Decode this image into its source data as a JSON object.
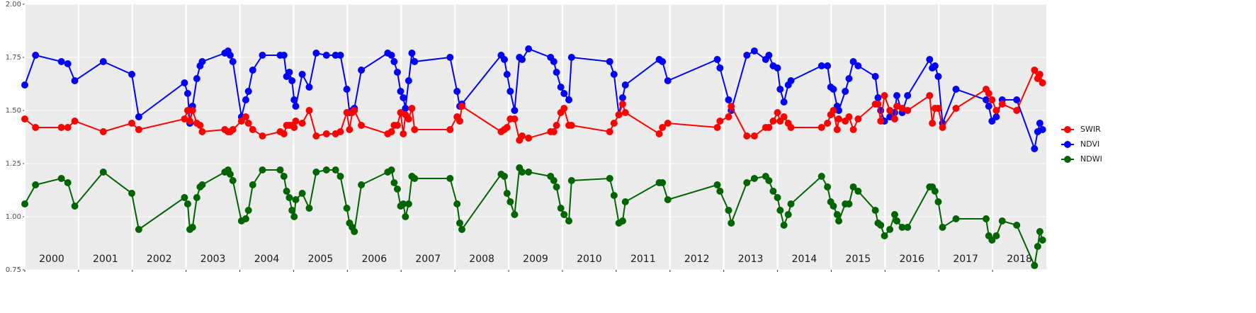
{
  "chart_data": {
    "type": "line",
    "x": [
      2000.0,
      2000.2,
      2000.68,
      2000.8,
      2000.93,
      2001.46,
      2001.99,
      2002.12,
      2002.97,
      2003.03,
      2003.07,
      2003.12,
      2003.2,
      2003.26,
      2003.3,
      2003.72,
      2003.78,
      2003.82,
      2003.87,
      2004.03,
      2004.11,
      2004.16,
      2004.24,
      2004.42,
      2004.75,
      2004.82,
      2004.87,
      2004.92,
      2004.97,
      2005.01,
      2005.04,
      2005.16,
      2005.29,
      2005.42,
      2005.61,
      2005.78,
      2005.87,
      2005.99,
      2006.04,
      2006.09,
      2006.13,
      2006.26,
      2006.75,
      2006.82,
      2006.87,
      2006.93,
      2006.99,
      2007.04,
      2007.08,
      2007.14,
      2007.2,
      2007.25,
      2007.91,
      2008.04,
      2008.09,
      2008.13,
      2008.86,
      2008.92,
      2008.97,
      2009.03,
      2009.11,
      2009.2,
      2009.25,
      2009.37,
      2009.78,
      2009.84,
      2009.89,
      2009.97,
      2010.03,
      2010.12,
      2010.17,
      2010.88,
      2010.96,
      2011.05,
      2011.12,
      2011.17,
      2011.8,
      2011.86,
      2011.96,
      2012.88,
      2012.93,
      2013.09,
      2013.14,
      2013.43,
      2013.57,
      2013.78,
      2013.84,
      2013.92,
      2014.0,
      2014.05,
      2014.12,
      2014.2,
      2014.25,
      2014.82,
      2014.93,
      2014.99,
      2015.04,
      2015.11,
      2015.14,
      2015.26,
      2015.33,
      2015.41,
      2015.5,
      2015.82,
      2015.87,
      2015.92,
      2015.99,
      2016.09,
      2016.18,
      2016.22,
      2016.32,
      2016.42,
      2016.83,
      2016.88,
      2016.93,
      2016.99,
      2017.07,
      2017.32,
      2017.88,
      2017.93,
      2017.99,
      2018.07,
      2018.18,
      2018.45,
      2018.78,
      2018.84,
      2018.88,
      2018.93
    ],
    "series": [
      {
        "name": "SWIR",
        "color": "#ff0000",
        "values": [
          1.46,
          1.42,
          1.42,
          1.42,
          1.45,
          1.4,
          1.44,
          1.41,
          1.46,
          1.5,
          1.45,
          1.5,
          1.44,
          1.43,
          1.4,
          1.41,
          1.4,
          1.4,
          1.41,
          1.45,
          1.47,
          1.44,
          1.41,
          1.38,
          1.4,
          1.39,
          1.43,
          1.43,
          1.43,
          1.42,
          1.45,
          1.44,
          1.5,
          1.38,
          1.39,
          1.39,
          1.4,
          1.49,
          1.41,
          1.49,
          1.5,
          1.43,
          1.39,
          1.4,
          1.43,
          1.43,
          1.49,
          1.39,
          1.48,
          1.46,
          1.51,
          1.41,
          1.41,
          1.47,
          1.45,
          1.52,
          1.4,
          1.41,
          1.42,
          1.46,
          1.46,
          1.36,
          1.38,
          1.37,
          1.4,
          1.4,
          1.43,
          1.49,
          1.51,
          1.43,
          1.43,
          1.4,
          1.44,
          1.48,
          1.53,
          1.49,
          1.39,
          1.42,
          1.44,
          1.42,
          1.45,
          1.47,
          1.52,
          1.38,
          1.38,
          1.42,
          1.42,
          1.45,
          1.49,
          1.45,
          1.47,
          1.44,
          1.42,
          1.42,
          1.44,
          1.48,
          1.5,
          1.41,
          1.46,
          1.45,
          1.47,
          1.41,
          1.46,
          1.53,
          1.53,
          1.45,
          1.57,
          1.5,
          1.46,
          1.52,
          1.51,
          1.5,
          1.57,
          1.44,
          1.51,
          1.51,
          1.42,
          1.51,
          1.6,
          1.58,
          1.55,
          1.5,
          1.53,
          1.5,
          1.69,
          1.65,
          1.67,
          1.63
        ]
      },
      {
        "name": "NDVI",
        "color": "#0000ff",
        "values": [
          1.62,
          1.76,
          1.73,
          1.72,
          1.64,
          1.73,
          1.67,
          1.47,
          1.63,
          1.58,
          1.44,
          1.52,
          1.65,
          1.71,
          1.73,
          1.77,
          1.78,
          1.76,
          1.73,
          1.47,
          1.55,
          1.59,
          1.69,
          1.76,
          1.76,
          1.76,
          1.66,
          1.68,
          1.64,
          1.55,
          1.52,
          1.67,
          1.61,
          1.77,
          1.76,
          1.76,
          1.76,
          1.6,
          1.49,
          1.5,
          1.51,
          1.69,
          1.77,
          1.76,
          1.73,
          1.68,
          1.59,
          1.56,
          1.51,
          1.64,
          1.77,
          1.73,
          1.75,
          1.59,
          1.52,
          1.53,
          1.76,
          1.74,
          1.67,
          1.59,
          1.5,
          1.75,
          1.74,
          1.79,
          1.75,
          1.73,
          1.68,
          1.61,
          1.58,
          1.55,
          1.75,
          1.73,
          1.67,
          1.48,
          1.56,
          1.62,
          1.74,
          1.73,
          1.64,
          1.74,
          1.7,
          1.55,
          1.5,
          1.76,
          1.78,
          1.74,
          1.76,
          1.71,
          1.7,
          1.6,
          1.54,
          1.62,
          1.64,
          1.71,
          1.71,
          1.61,
          1.6,
          1.52,
          1.5,
          1.59,
          1.65,
          1.73,
          1.71,
          1.66,
          1.56,
          1.5,
          1.45,
          1.47,
          1.49,
          1.57,
          1.49,
          1.57,
          1.74,
          1.7,
          1.71,
          1.66,
          1.44,
          1.6,
          1.55,
          1.52,
          1.45,
          1.47,
          1.55,
          1.55,
          1.32,
          1.4,
          1.44,
          1.41
        ]
      },
      {
        "name": "NDWI",
        "color": "#006400",
        "values": [
          1.06,
          1.15,
          1.18,
          1.16,
          1.05,
          1.21,
          1.11,
          0.94,
          1.09,
          1.06,
          0.94,
          0.95,
          1.09,
          1.14,
          1.15,
          1.21,
          1.22,
          1.2,
          1.17,
          0.98,
          0.99,
          1.03,
          1.15,
          1.22,
          1.22,
          1.19,
          1.12,
          1.09,
          1.03,
          1.0,
          1.08,
          1.11,
          1.04,
          1.21,
          1.22,
          1.22,
          1.19,
          1.04,
          0.97,
          0.95,
          0.93,
          1.15,
          1.21,
          1.22,
          1.16,
          1.13,
          1.05,
          1.06,
          1.0,
          1.06,
          1.19,
          1.18,
          1.18,
          1.06,
          0.97,
          0.94,
          1.2,
          1.19,
          1.11,
          1.07,
          1.01,
          1.23,
          1.21,
          1.21,
          1.19,
          1.17,
          1.14,
          1.04,
          1.01,
          0.98,
          1.17,
          1.18,
          1.1,
          0.97,
          0.98,
          1.07,
          1.16,
          1.16,
          1.08,
          1.15,
          1.12,
          1.03,
          0.97,
          1.16,
          1.18,
          1.19,
          1.17,
          1.12,
          1.09,
          1.03,
          0.96,
          1.01,
          1.06,
          1.19,
          1.14,
          1.07,
          1.05,
          1.01,
          0.98,
          1.06,
          1.06,
          1.14,
          1.12,
          1.03,
          0.97,
          0.96,
          0.91,
          0.94,
          1.01,
          0.98,
          0.95,
          0.95,
          1.14,
          1.14,
          1.12,
          1.07,
          0.95,
          0.99,
          0.99,
          0.91,
          0.89,
          0.91,
          0.98,
          0.96,
          0.77,
          0.86,
          0.93,
          0.89
        ]
      }
    ],
    "xlim": [
      2000,
      2019
    ],
    "xticks": [
      2000,
      2001,
      2002,
      2003,
      2004,
      2005,
      2006,
      2007,
      2008,
      2009,
      2010,
      2011,
      2012,
      2013,
      2014,
      2015,
      2016,
      2017,
      2018
    ],
    "ylim": [
      0.75,
      2.0
    ],
    "yticks": [
      {
        "value": 0.75,
        "label": "0.75"
      },
      {
        "value": 1.0,
        "label": "1.00"
      },
      {
        "value": 1.25,
        "label": "1.25"
      },
      {
        "value": 1.5,
        "label": "1.50"
      },
      {
        "value": 1.75,
        "label": "1.75"
      },
      {
        "value": 2.0,
        "label": "2.00"
      }
    ],
    "grid": true,
    "legend": "right"
  }
}
